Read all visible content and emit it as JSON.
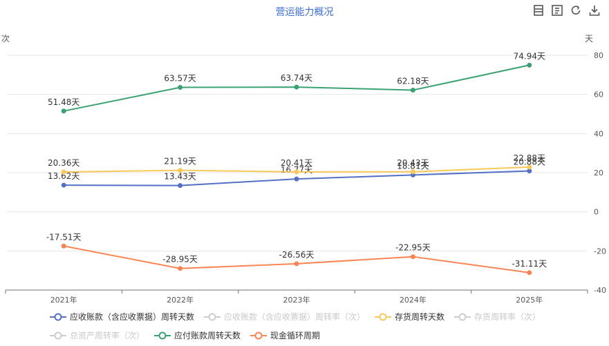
{
  "chart_data": {
    "type": "line",
    "title": "营运能力概况",
    "categories": [
      "2021年",
      "2022年",
      "2023年",
      "2024年",
      "2025年"
    ],
    "left_axis_label": "次",
    "right_axis_label": "天",
    "y_ticks": [
      -40,
      -20,
      0,
      20,
      40,
      60,
      80
    ],
    "ylim": [
      -40,
      80
    ],
    "unit_suffix": "天",
    "legend_position": "bottom",
    "series": [
      {
        "name": "应收账款（含应收票据）周转天数",
        "values": [
          13.62,
          13.43,
          16.77,
          18.81,
          20.88
        ],
        "color": "#5470c6",
        "visible": true,
        "labels": [
          "13.62天",
          "13.43天",
          "16.77天",
          "18.81天",
          "20.88天"
        ]
      },
      {
        "name": "应收账款（含应收票据）周转率（次）",
        "color": "#cccccc",
        "visible": false
      },
      {
        "name": "存货周转天数",
        "values": [
          20.36,
          21.19,
          20.41,
          20.43,
          22.88
        ],
        "color": "#fac858",
        "visible": true,
        "labels": [
          "20.36天",
          "21.19天",
          "20.41天",
          "20.43天",
          "22.88天"
        ]
      },
      {
        "name": "存货周转率（次）",
        "color": "#cccccc",
        "visible": false
      },
      {
        "name": "总资产周转率（次）",
        "color": "#cccccc",
        "visible": false
      },
      {
        "name": "应付账款周转天数",
        "values": [
          51.48,
          63.57,
          63.74,
          62.18,
          74.94
        ],
        "color": "#3ba272",
        "visible": true,
        "labels": [
          "51.48天",
          "63.57天",
          "63.74天",
          "62.18天",
          "74.94天"
        ]
      },
      {
        "name": "现金循环周期",
        "values": [
          -17.51,
          -28.95,
          -26.56,
          -22.95,
          -31.11
        ],
        "color": "#fc8452",
        "visible": true,
        "labels": [
          "-17.51天",
          "-28.95天",
          "-26.56天",
          "-22.95天",
          "-31.11天"
        ]
      }
    ]
  },
  "toolbar": [
    {
      "name": "data-view-icon"
    },
    {
      "name": "table-view-icon"
    },
    {
      "name": "restore-icon"
    },
    {
      "name": "download-icon"
    }
  ]
}
